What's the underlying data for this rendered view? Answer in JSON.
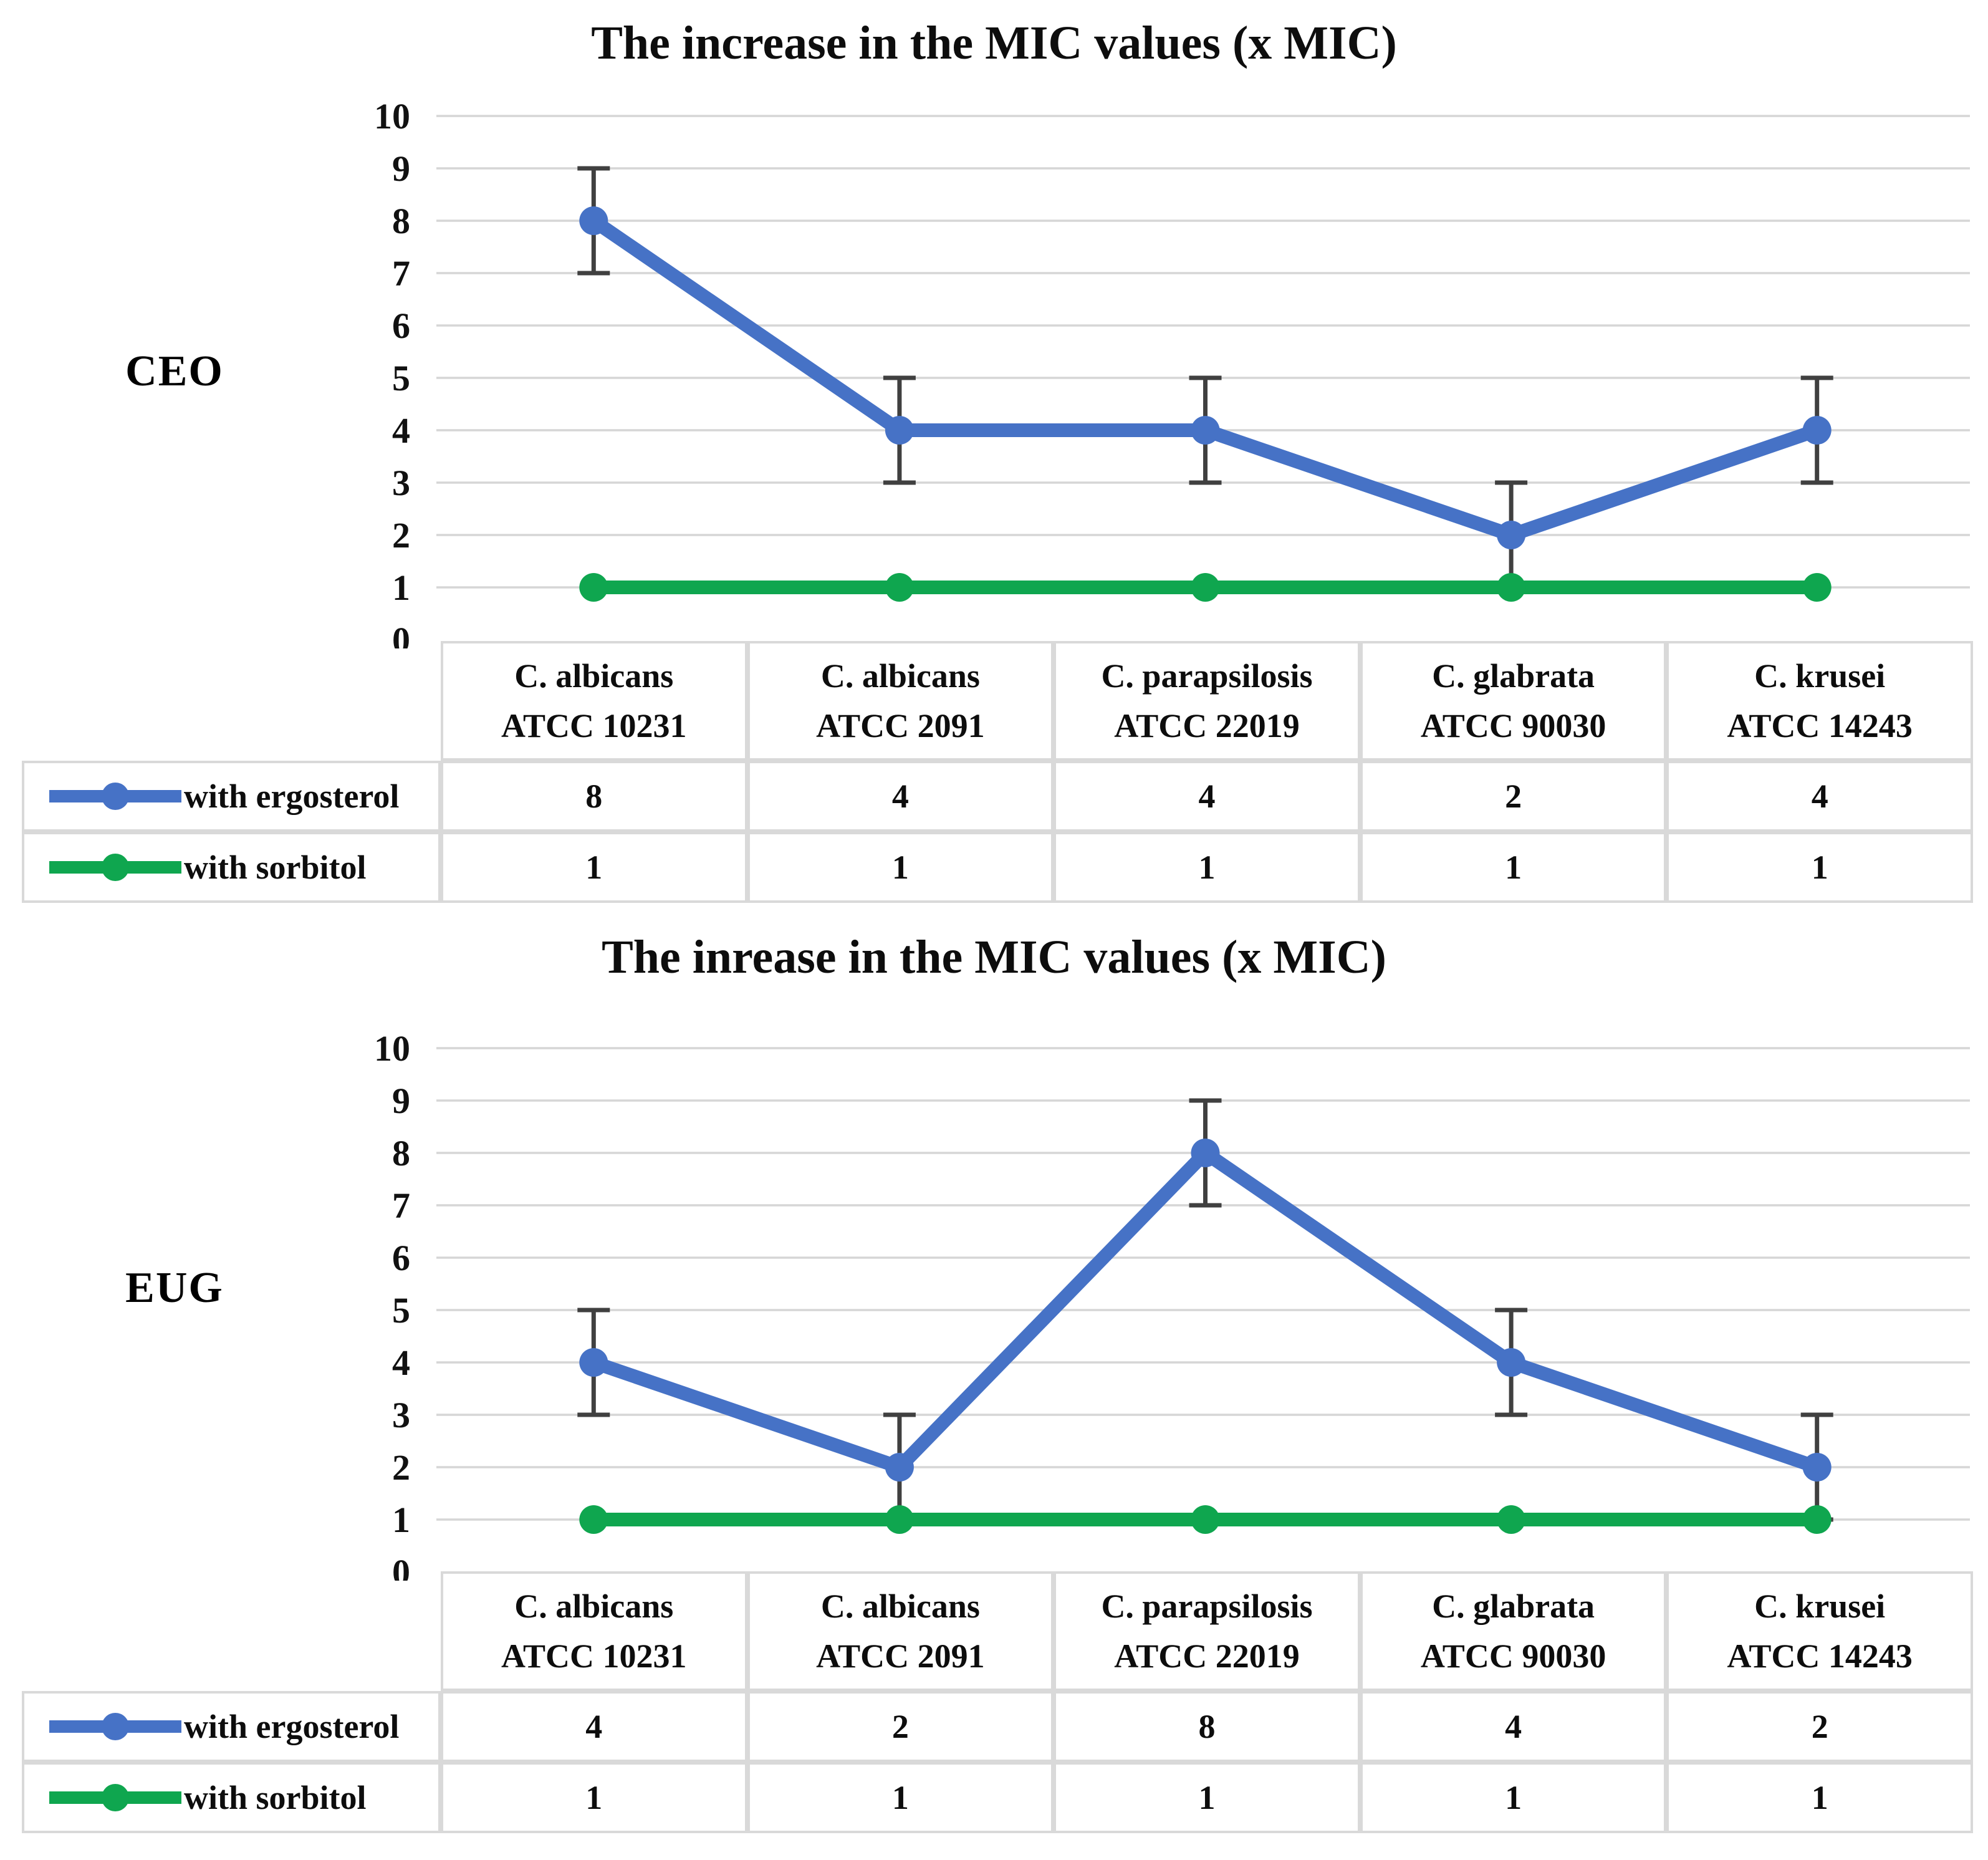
{
  "page": {
    "background": "#ffffff"
  },
  "chart_data": [
    {
      "type": "line",
      "title": "The increase in the MIC values (x MIC)",
      "side_label": "CEO",
      "ylim": [
        0,
        10
      ],
      "ytick_step": 1,
      "grid": true,
      "legend_position": "table-left",
      "categories": [
        {
          "line1": "C. albicans",
          "line2": "ATCC 10231"
        },
        {
          "line1": "C. albicans",
          "line2": "ATCC 2091"
        },
        {
          "line1": "C. parapsilosis",
          "line2": "ATCC 22019"
        },
        {
          "line1": "C. glabrata",
          "line2": "ATCC 90030"
        },
        {
          "line1": "C. krusei",
          "line2": "ATCC 14243"
        }
      ],
      "series": [
        {
          "name": "with ergosterol",
          "values": [
            8,
            4,
            4,
            2,
            4
          ],
          "color": "#4672C6",
          "error": 1
        },
        {
          "name": "with sorbitol",
          "values": [
            1,
            1,
            1,
            1,
            1
          ],
          "color": "#0FA64F",
          "error": 0
        }
      ],
      "colors": {
        "gridline": "#D6D6D6",
        "error_bar": "#404040"
      }
    },
    {
      "type": "line",
      "title": "The inrease in the MIC values (x MIC)",
      "side_label": "EUG",
      "ylim": [
        0,
        10
      ],
      "ytick_step": 1,
      "grid": true,
      "legend_position": "table-left",
      "categories": [
        {
          "line1": "C. albicans",
          "line2": "ATCC 10231"
        },
        {
          "line1": "C. albicans",
          "line2": "ATCC 2091"
        },
        {
          "line1": "C. parapsilosis",
          "line2": "ATCC 22019"
        },
        {
          "line1": "C. glabrata",
          "line2": "ATCC 90030"
        },
        {
          "line1": "C. krusei",
          "line2": "ATCC 14243"
        }
      ],
      "series": [
        {
          "name": "with ergosterol",
          "values": [
            4,
            2,
            8,
            4,
            2
          ],
          "color": "#4672C6",
          "error": 1
        },
        {
          "name": "with sorbitol",
          "values": [
            1,
            1,
            1,
            1,
            1
          ],
          "color": "#0FA64F",
          "error": 0
        }
      ],
      "colors": {
        "gridline": "#D6D6D6",
        "error_bar": "#404040"
      }
    }
  ]
}
